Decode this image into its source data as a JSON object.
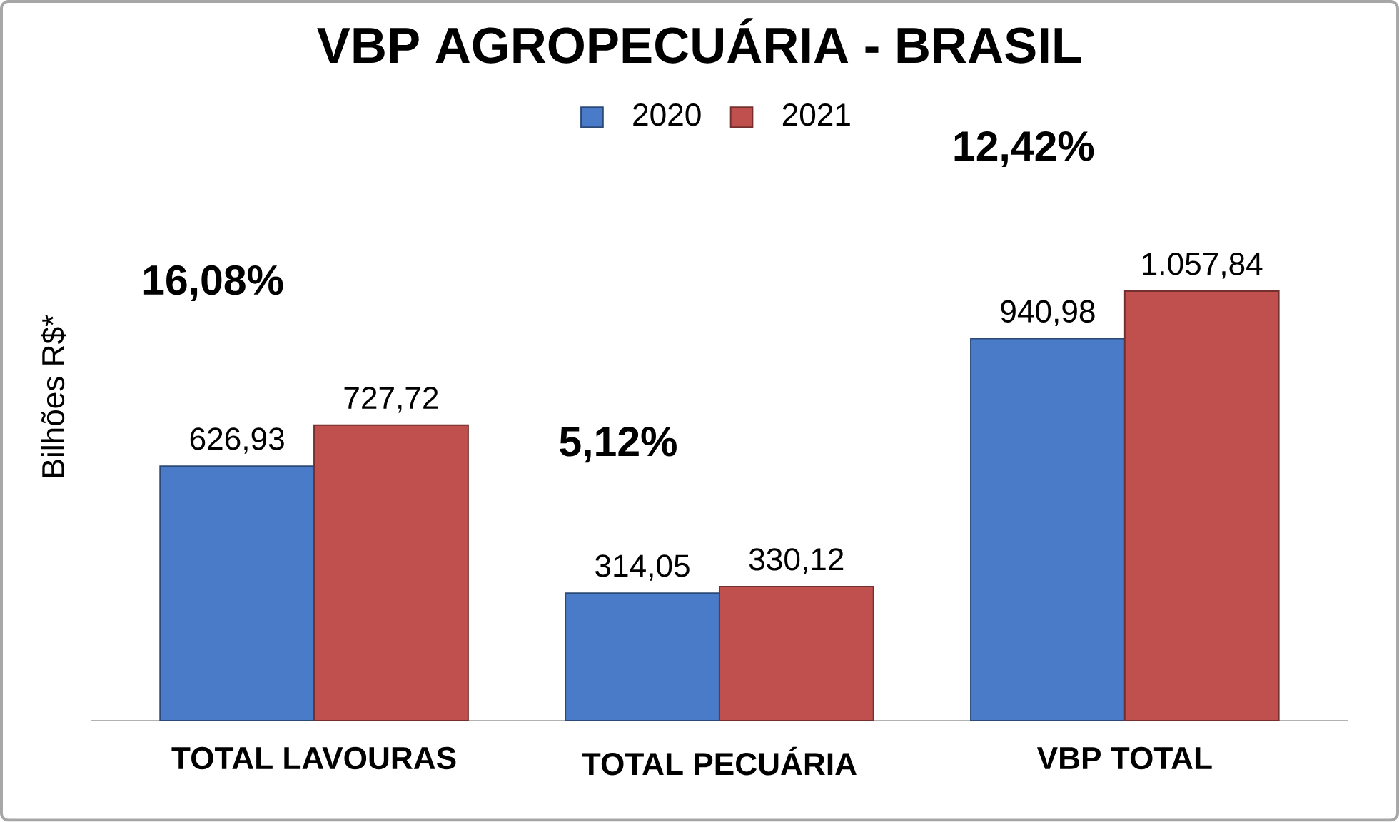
{
  "chart_data": {
    "type": "bar",
    "title": "VBP AGROPECUÁRIA - BRASIL",
    "ylabel": "Bilhões R$*",
    "categories": [
      "TOTAL LAVOURAS",
      "TOTAL PECUÁRIA",
      "VBP TOTAL"
    ],
    "series": [
      {
        "name": "2020",
        "color": "#4a7bc8",
        "values": [
          626.93,
          314.05,
          940.98
        ],
        "value_labels": [
          "626,93",
          "314,05",
          "940,98"
        ]
      },
      {
        "name": "2021",
        "color": "#c0504d",
        "values": [
          727.72,
          330.12,
          1057.84
        ],
        "value_labels": [
          "727,72",
          "330,12",
          "1.057,84"
        ]
      }
    ],
    "annotations": [
      "16,08%",
      "5,12%",
      "12,42%"
    ],
    "legend": "top",
    "grid": false
  }
}
